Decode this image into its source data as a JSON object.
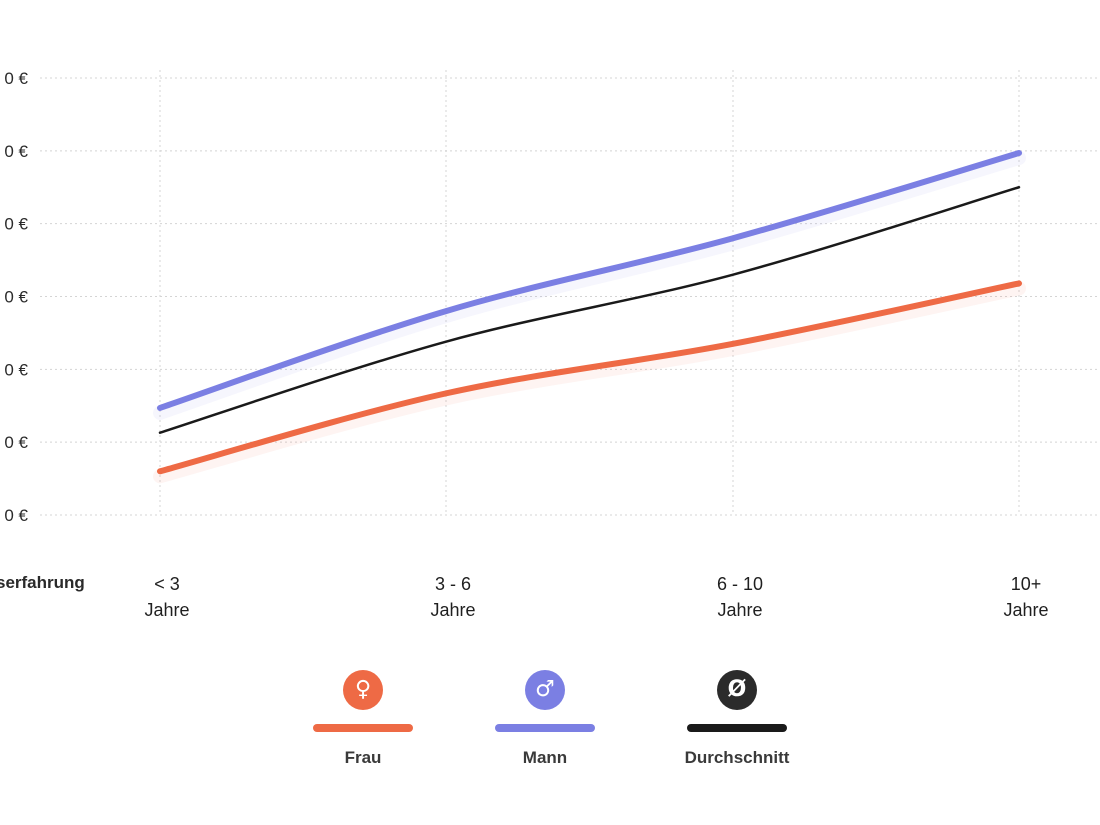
{
  "chart_data": {
    "type": "line",
    "xlabel": "serfahrung",
    "categories": [
      [
        "< 3",
        "Jahre"
      ],
      [
        "3 - 6",
        "Jahre"
      ],
      [
        "6 - 10",
        "Jahre"
      ],
      [
        "10+",
        "Jahre"
      ]
    ],
    "y_tick_labels": [
      "0 €",
      "0 €",
      "0 €",
      "0 €",
      "0 €",
      "0 €",
      "0 €"
    ],
    "ylim": [
      0,
      6
    ],
    "grid": true,
    "legend_position": "bottom",
    "series": [
      {
        "name": "Frau",
        "symbol": "♀",
        "color": "#ee6a45",
        "values": [
          0.6,
          1.67,
          2.35,
          3.18
        ]
      },
      {
        "name": "Mann",
        "symbol": "♂",
        "color": "#7b7fe3",
        "values": [
          1.47,
          2.8,
          3.8,
          4.97
        ]
      },
      {
        "name": "Durchschnitt",
        "symbol": "Ø",
        "color": "#1a1a1a",
        "values": [
          1.13,
          2.38,
          3.3,
          4.5
        ]
      }
    ]
  }
}
